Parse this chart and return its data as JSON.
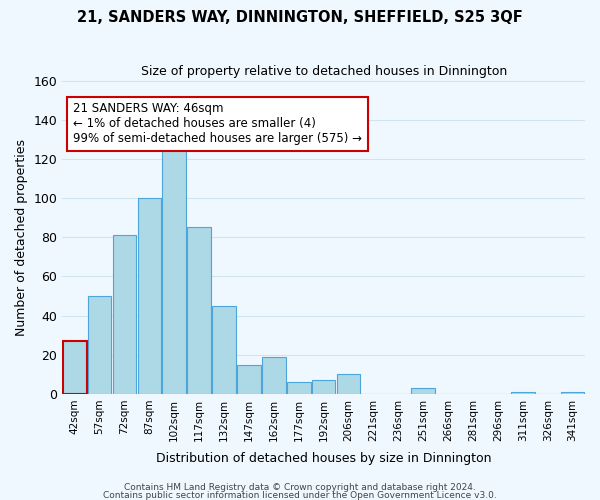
{
  "title": "21, SANDERS WAY, DINNINGTON, SHEFFIELD, S25 3QF",
  "subtitle": "Size of property relative to detached houses in Dinnington",
  "xlabel": "Distribution of detached houses by size in Dinnington",
  "ylabel": "Number of detached properties",
  "bar_labels": [
    "42sqm",
    "57sqm",
    "72sqm",
    "87sqm",
    "102sqm",
    "117sqm",
    "132sqm",
    "147sqm",
    "162sqm",
    "177sqm",
    "192sqm",
    "206sqm",
    "221sqm",
    "236sqm",
    "251sqm",
    "266sqm",
    "281sqm",
    "296sqm",
    "311sqm",
    "326sqm",
    "341sqm"
  ],
  "bar_values": [
    27,
    50,
    81,
    100,
    130,
    85,
    45,
    15,
    19,
    6,
    7,
    10,
    0,
    0,
    3,
    0,
    0,
    0,
    1,
    0,
    1
  ],
  "bar_color": "#add8e6",
  "bar_edge_color": "#4da6d9",
  "highlight_bar_index": 0,
  "highlight_color": "#add8e6",
  "highlight_edge_color": "#cc0000",
  "ylim": [
    0,
    160
  ],
  "yticks": [
    0,
    20,
    40,
    60,
    80,
    100,
    120,
    140,
    160
  ],
  "annotation_title": "21 SANDERS WAY: 46sqm",
  "annotation_line1": "← 1% of detached houses are smaller (4)",
  "annotation_line2": "99% of semi-detached houses are larger (575) →",
  "annotation_box_color": "#ffffff",
  "annotation_box_edge": "#cc0000",
  "grid_color": "#d0e4f0",
  "background_color": "#f0f8ff",
  "footer1": "Contains HM Land Registry data © Crown copyright and database right 2024.",
  "footer2": "Contains public sector information licensed under the Open Government Licence v3.0."
}
